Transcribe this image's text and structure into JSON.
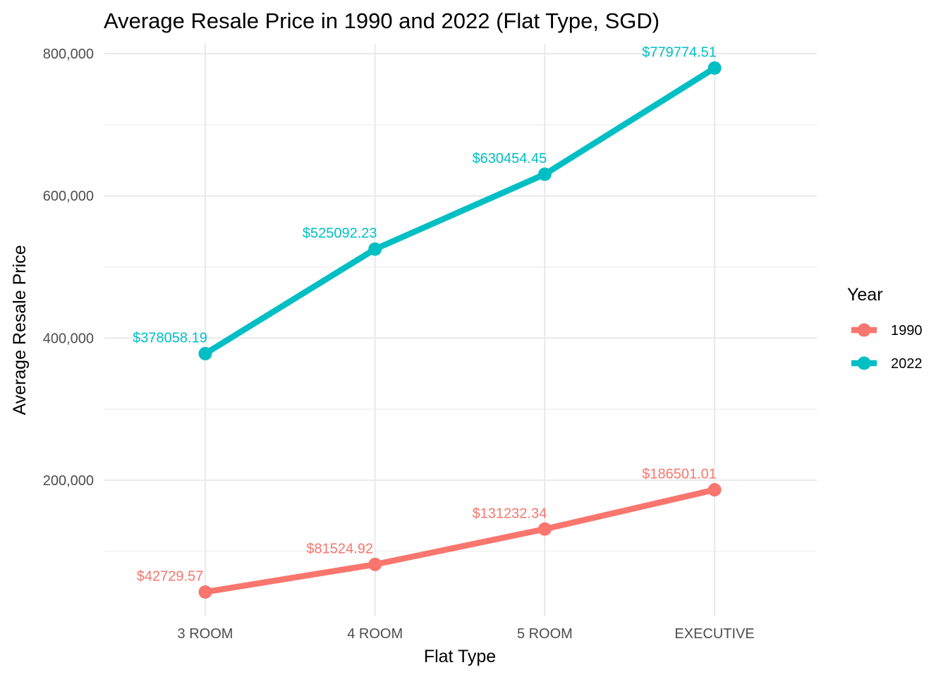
{
  "chart_data": {
    "type": "line",
    "title": "Average Resale Price in 1990 and 2022 (Flat Type, SGD)",
    "xlabel": "Flat Type",
    "ylabel": "Average Resale Price",
    "categories": [
      "3 ROOM",
      "4 ROOM",
      "5 ROOM",
      "EXECUTIVE"
    ],
    "y_ticks": [
      200000,
      400000,
      600000,
      800000
    ],
    "y_tick_labels": [
      "200,000",
      "400,000",
      "600,000",
      "800,000"
    ],
    "y_minor_ticks": [
      100000,
      300000,
      500000,
      700000
    ],
    "ylim": [
      8477.3,
      814027.3
    ],
    "grid": true,
    "legend": {
      "title": "Year",
      "position": "right"
    },
    "series": [
      {
        "name": "1990",
        "color": "#F8766D",
        "values": [
          42729.57,
          81524.92,
          131232.34,
          186501.01
        ],
        "labels": [
          "$42729.57",
          "$81524.92",
          "$131232.34",
          "$186501.01"
        ]
      },
      {
        "name": "2022",
        "color": "#00BFC4",
        "values": [
          378058.19,
          525092.23,
          630454.45,
          779774.51
        ],
        "labels": [
          "$378058.19",
          "$525092.23",
          "$630454.45",
          "$779774.51"
        ]
      }
    ]
  }
}
